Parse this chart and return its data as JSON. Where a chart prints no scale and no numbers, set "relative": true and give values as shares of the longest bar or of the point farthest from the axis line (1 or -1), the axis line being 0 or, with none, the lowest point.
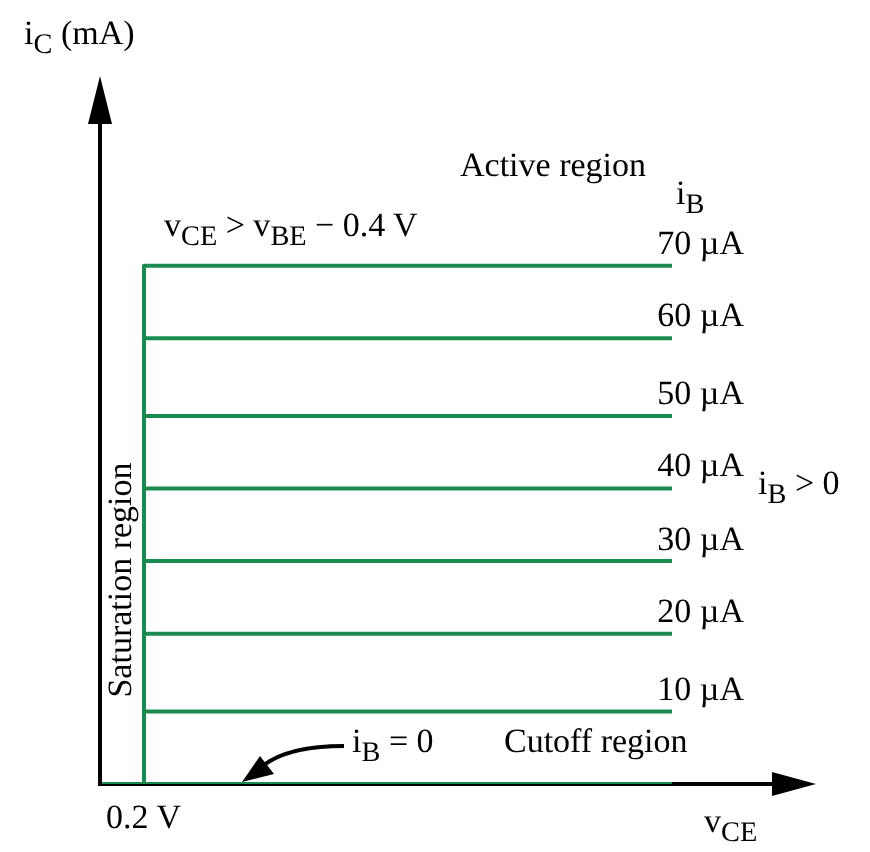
{
  "chart_data": {
    "type": "line",
    "relative": true,
    "xlabel": "v$_{CE}$",
    "legend_title": "i$_{B}$",
    "grid": false,
    "marker": "none",
    "line_style": "solid",
    "categories": [
      null,
      null,
      null,
      null,
      null,
      null,
      null,
      null,
      null,
      null,
      null,
      null,
      null,
      null
    ],
    "series": [
      {
        "name": "70 µA",
        "type": "step",
        "color": "#1a8a50",
        "values": [
          null,
          0,
          1,
          1,
          1,
          1,
          1,
          1,
          1,
          1,
          1,
          1,
          1,
          1
        ]
      },
      {
        "name": "60 µA",
        "type": "step",
        "color": "#1a8a50",
        "values": [
          null,
          0,
          0.86,
          0.86,
          0.86,
          0.86,
          0.86,
          0.86,
          0.86,
          0.86,
          0.86,
          0.86,
          0.86,
          0.86
        ]
      },
      {
        "name": "50 µA",
        "type": "step",
        "color": "#1a8a50",
        "values": [
          null,
          0,
          0.71,
          0.71,
          0.71,
          0.71,
          0.71,
          0.71,
          0.71,
          0.71,
          0.71,
          0.71,
          0.71,
          0.71
        ]
      },
      {
        "name": "40 µA",
        "type": "step",
        "color": "#1a8a50",
        "values": [
          null,
          0,
          0.57,
          0.57,
          0.57,
          0.57,
          0.57,
          0.57,
          0.57,
          0.57,
          0.57,
          0.57,
          0.57,
          0.57
        ]
      },
      {
        "name": "30 µA",
        "type": "step",
        "color": "#1a8a50",
        "values": [
          null,
          0,
          0.43,
          0.43,
          0.43,
          0.43,
          0.43,
          0.43,
          0.43,
          0.43,
          0.43,
          0.43,
          0.43,
          0.43
        ]
      },
      {
        "name": "20 µA",
        "type": "step",
        "color": "#1a8a50",
        "values": [
          null,
          0,
          0.29,
          0.29,
          0.29,
          0.29,
          0.29,
          0.29,
          0.29,
          0.29,
          0.29,
          0.29,
          0.29,
          0.29
        ]
      },
      {
        "name": "10 µA",
        "type": "step",
        "color": "#1a8a50",
        "values": [
          null,
          0,
          0.14,
          0.14,
          0.14,
          0.14,
          0.14,
          0.14,
          0.14,
          0.14,
          0.14,
          0.14,
          0.14,
          0.14
        ]
      },
      {
        "color": "#1a8a50",
        "values": [
          0,
          0,
          0,
          0,
          0,
          0,
          0,
          0,
          0,
          0,
          0,
          0,
          0,
          0
        ]
      }
    ],
    "annotations": [
      "Active region",
      "v$_{CE}$ > v$_{BE}$ − 0.4 V",
      "Saturation region",
      "i$_{B}$ = 0",
      "Cutoff region",
      "i$_{B}$ > 0",
      "0.2 V",
      "i$_{C}$ (mA)"
    ]
  }
}
